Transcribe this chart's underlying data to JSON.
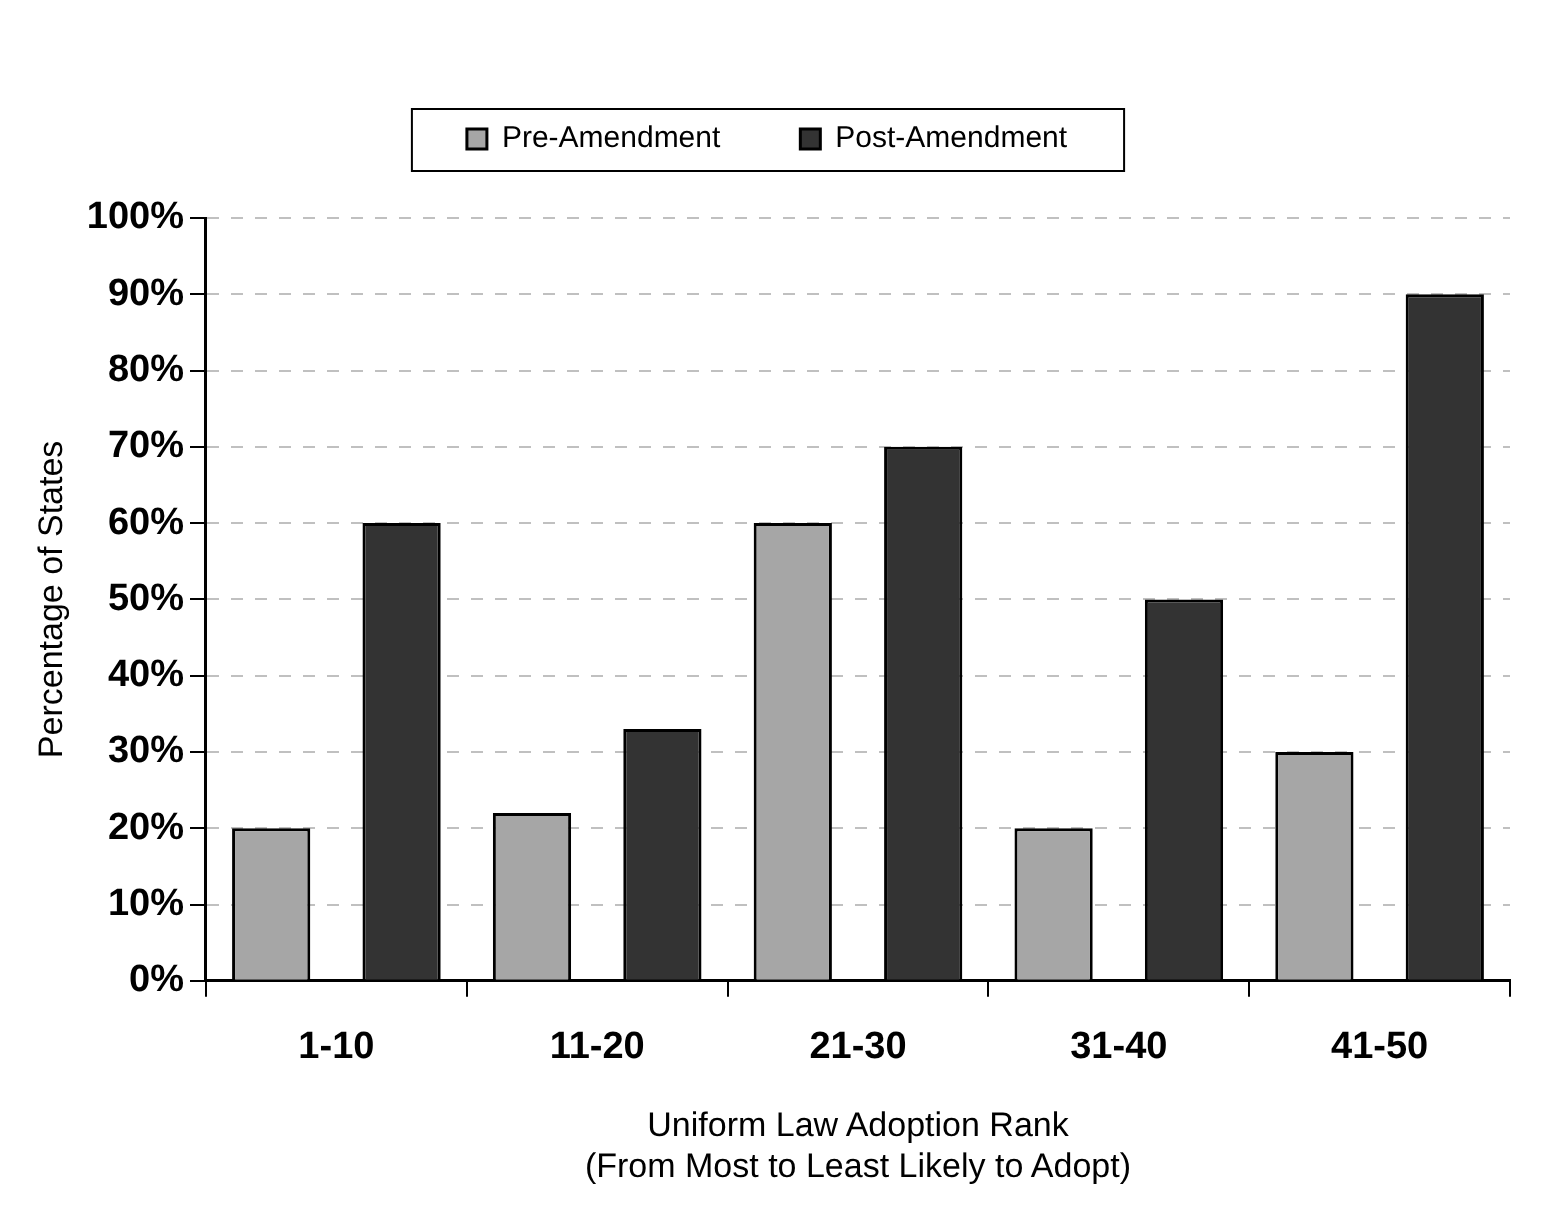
{
  "chart_data": {
    "type": "bar",
    "xlabel": "Uniform Law Adoption Rank\n(From Most to Least Likely to Adopt)",
    "ylabel": "Percentage of States",
    "categories": [
      "1-10",
      "11-20",
      "21-30",
      "31-40",
      "41-50"
    ],
    "series": [
      {
        "name": "Pre-Amendment",
        "color": "#a6a6a6",
        "values": [
          20,
          22,
          60,
          20,
          30
        ]
      },
      {
        "name": "Post-Amendment",
        "color": "#333333",
        "values": [
          60,
          33,
          70,
          50,
          90
        ]
      }
    ],
    "ylim": [
      0,
      100
    ],
    "yticks": [
      {
        "value": 0,
        "label": "0%"
      },
      {
        "value": 10,
        "label": "10%"
      },
      {
        "value": 20,
        "label": "20%"
      },
      {
        "value": 30,
        "label": "30%"
      },
      {
        "value": 40,
        "label": "40%"
      },
      {
        "value": 50,
        "label": "50%"
      },
      {
        "value": 60,
        "label": "60%"
      },
      {
        "value": 70,
        "label": "70%"
      },
      {
        "value": 80,
        "label": "80%"
      },
      {
        "value": 90,
        "label": "90%"
      },
      {
        "value": 100,
        "label": "100%"
      }
    ],
    "grid": "y",
    "legend": "top"
  }
}
